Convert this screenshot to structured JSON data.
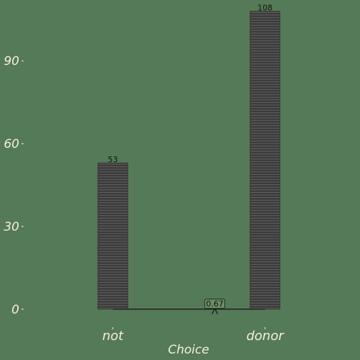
{
  "chart_data": {
    "type": "bar",
    "categories": [
      "not",
      "donor"
    ],
    "values": [
      53,
      108
    ],
    "data_labels": [
      "53",
      "108"
    ],
    "xlabel": "Choice",
    "ylabel": "",
    "ylim": [
      -6,
      110
    ],
    "yticks": [
      0,
      30,
      60,
      90
    ],
    "ytick_labels": [
      "0",
      "30",
      "60",
      "90"
    ],
    "grid": false,
    "legend": "none",
    "proportion_marker": {
      "value": 0.67,
      "label": "0.67"
    },
    "colors": {
      "background": "#557a58",
      "bar_fill": "#3a3a3a",
      "bar_stripe": "#6e6e6e",
      "text": "#f5f0d8",
      "baseline": "#1a1a1a",
      "marker_fill": "#6b8f62"
    }
  }
}
